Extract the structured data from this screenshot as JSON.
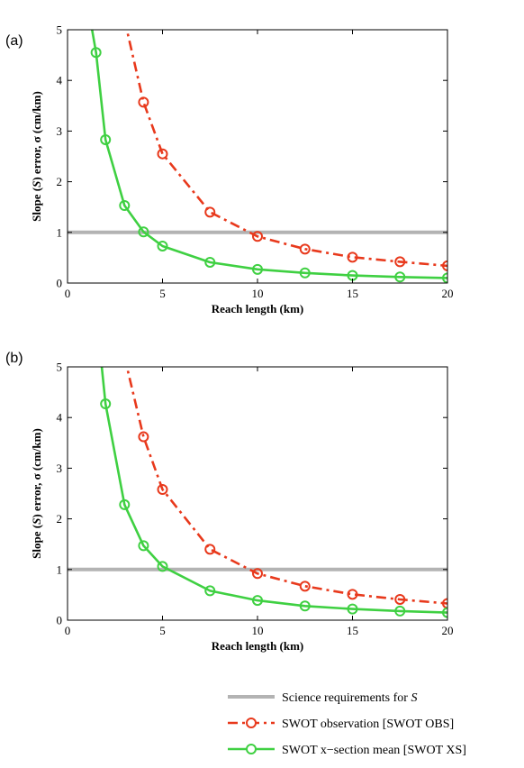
{
  "figure": {
    "legend": [
      {
        "label": "Science requirements for ",
        "label_italic": "S",
        "color": "#b3b3b3",
        "style": "solid-thick",
        "marker": "none"
      },
      {
        "label": "SWOT observation [SWOT OBS]",
        "label_italic": "",
        "color": "#e8391c",
        "style": "dash-dot",
        "marker": "circle"
      },
      {
        "label": "SWOT x−section mean [SWOT XS]",
        "label_italic": "",
        "color": "#3fd042",
        "style": "solid",
        "marker": "circle"
      }
    ]
  },
  "chart_data": [
    {
      "panel": "(a)",
      "type": "line",
      "xlabel": "Reach length (km)",
      "ylabel_parts": [
        "Slope (",
        "S",
        ") error, σ (cm/km)"
      ],
      "xlim": [
        0,
        20
      ],
      "ylim": [
        0,
        5
      ],
      "xticks": [
        0,
        5,
        10,
        15,
        20
      ],
      "yticks": [
        0,
        1,
        2,
        3,
        4,
        5
      ],
      "grid": false,
      "requirement": 1,
      "series": [
        {
          "key": "obs",
          "color": "#e8391c",
          "x": [
            3,
            4,
            5,
            7.5,
            10,
            12.5,
            15,
            17.5,
            20
          ],
          "y": [
            5.2,
            3.57,
            2.55,
            1.4,
            0.92,
            0.67,
            0.51,
            0.42,
            0.34
          ],
          "markers": [
            false,
            true,
            true,
            true,
            true,
            true,
            true,
            true,
            true
          ]
        },
        {
          "key": "xs",
          "color": "#3fd042",
          "x": [
            1.2,
            1.5,
            2,
            3,
            4,
            5,
            7.5,
            10,
            12.5,
            15,
            17.5,
            20
          ],
          "y": [
            5.2,
            4.55,
            2.83,
            1.53,
            1.01,
            0.73,
            0.41,
            0.27,
            0.2,
            0.15,
            0.12,
            0.1
          ],
          "markers": [
            false,
            true,
            true,
            true,
            true,
            true,
            true,
            true,
            true,
            true,
            true,
            true
          ]
        }
      ]
    },
    {
      "panel": "(b)",
      "type": "line",
      "xlabel": "Reach length (km)",
      "ylabel_parts": [
        "Slope (",
        "S",
        ") error, σ (cm/km)"
      ],
      "xlim": [
        0,
        20
      ],
      "ylim": [
        0,
        5
      ],
      "xticks": [
        0,
        5,
        10,
        15,
        20
      ],
      "yticks": [
        0,
        1,
        2,
        3,
        4,
        5
      ],
      "grid": false,
      "requirement": 1,
      "series": [
        {
          "key": "obs",
          "color": "#e8391c",
          "x": [
            3,
            4,
            5,
            7.5,
            10,
            12.5,
            15,
            17.5,
            20
          ],
          "y": [
            5.2,
            3.62,
            2.58,
            1.4,
            0.92,
            0.67,
            0.51,
            0.41,
            0.33
          ],
          "markers": [
            false,
            true,
            true,
            true,
            true,
            true,
            true,
            true,
            true
          ]
        },
        {
          "key": "xs",
          "color": "#3fd042",
          "x": [
            1.75,
            2,
            3,
            4,
            5,
            7.5,
            10,
            12.5,
            15,
            17.5,
            20
          ],
          "y": [
            5.2,
            4.27,
            2.28,
            1.47,
            1.06,
            0.58,
            0.39,
            0.28,
            0.22,
            0.18,
            0.15
          ],
          "markers": [
            false,
            true,
            true,
            true,
            true,
            true,
            true,
            true,
            true,
            true,
            true
          ]
        }
      ]
    }
  ]
}
